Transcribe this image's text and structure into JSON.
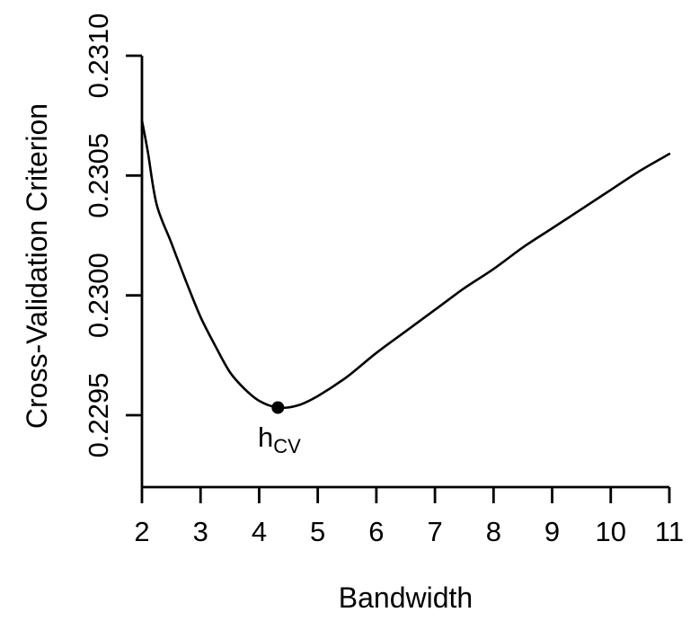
{
  "figure": {
    "background": "#ffffff",
    "axis_color": "#000000",
    "curve_color": "#000000",
    "marker_color": "#000000"
  },
  "chart_data": {
    "type": "line",
    "title": "",
    "xlabel": "Bandwidth",
    "ylabel": "Cross-Validation Criterion",
    "xlim": [
      2,
      11
    ],
    "ylim": [
      0.2292,
      0.231
    ],
    "grid": false,
    "legend": false,
    "x_ticks": {
      "values": [
        2,
        3,
        4,
        5,
        6,
        7,
        8,
        9,
        10,
        11
      ],
      "labels": [
        "2",
        "3",
        "4",
        "5",
        "6",
        "7",
        "8",
        "9",
        "10",
        "11"
      ]
    },
    "y_ticks": {
      "values": [
        0.2295,
        0.23,
        0.2305,
        0.231
      ],
      "labels": [
        "0.2295",
        "0.2300",
        "0.2305",
        "0.2310"
      ]
    },
    "series": [
      {
        "name": "cross-validation-criterion-curve",
        "points": [
          [
            2.0,
            0.23073
          ],
          [
            2.1,
            0.2306
          ],
          [
            2.25,
            0.23038
          ],
          [
            2.5,
            0.23022
          ],
          [
            2.75,
            0.23006
          ],
          [
            3.0,
            0.22991
          ],
          [
            3.25,
            0.22979
          ],
          [
            3.5,
            0.22968
          ],
          [
            3.75,
            0.22961
          ],
          [
            4.0,
            0.22956
          ],
          [
            4.32,
            0.229532
          ],
          [
            4.65,
            0.22954
          ],
          [
            5.0,
            0.22958
          ],
          [
            5.5,
            0.22966
          ],
          [
            6.0,
            0.22976
          ],
          [
            6.5,
            0.22985
          ],
          [
            7.0,
            0.22994
          ],
          [
            7.5,
            0.23003
          ],
          [
            8.0,
            0.23011
          ],
          [
            8.5,
            0.2302
          ],
          [
            9.0,
            0.23028
          ],
          [
            9.5,
            0.23036
          ],
          [
            10.0,
            0.23044
          ],
          [
            10.5,
            0.23052
          ],
          [
            11.0,
            0.23059
          ]
        ]
      }
    ],
    "min_point": {
      "x": 4.32,
      "y": 0.229532,
      "label_main": "h",
      "label_sub": "CV"
    }
  }
}
